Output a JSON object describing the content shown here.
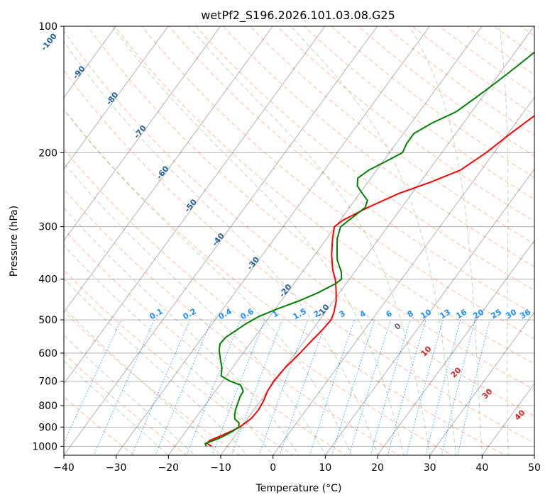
{
  "chart_data": {
    "type": "line",
    "subtype": "skew-t log-p",
    "title": "wetPf2_S196.2026.101.03.08.G25",
    "xlabel": "Temperature (°C)",
    "ylabel": "Pressure (hPa)",
    "xlim": [
      -40,
      50
    ],
    "ylim": [
      1050,
      100
    ],
    "y_scale": "log",
    "x_ticks": [
      -40,
      -30,
      -20,
      -10,
      0,
      10,
      20,
      30,
      40,
      50
    ],
    "x_tick_labels": [
      "−40",
      "−30",
      "−20",
      "−10",
      "0",
      "10",
      "20",
      "30",
      "40",
      "50"
    ],
    "y_ticks": [
      1000,
      900,
      800,
      700,
      600,
      500,
      400,
      300,
      200,
      100
    ],
    "y_tick_labels": [
      "1000",
      "900",
      "800",
      "700",
      "600",
      "500",
      "400",
      "300",
      "200",
      "100"
    ],
    "grid": true,
    "series": [
      {
        "color": "#ff0000",
        "points": [
          {
            "p": 1000,
            "t": -13.0
          },
          {
            "p": 985,
            "t": -14.2
          },
          {
            "p": 970,
            "t": -14.2
          },
          {
            "p": 950,
            "t": -13.0
          },
          {
            "p": 920,
            "t": -11.3
          },
          {
            "p": 900,
            "t": -10.3
          },
          {
            "p": 860,
            "t": -9.3
          },
          {
            "p": 820,
            "t": -9.1
          },
          {
            "p": 780,
            "t": -9.4
          },
          {
            "p": 740,
            "t": -10.0
          },
          {
            "p": 700,
            "t": -10.2
          },
          {
            "p": 650,
            "t": -9.9
          },
          {
            "p": 600,
            "t": -9.1
          },
          {
            "p": 560,
            "t": -8.6
          },
          {
            "p": 530,
            "t": -8.1
          },
          {
            "p": 500,
            "t": -7.8
          },
          {
            "p": 480,
            "t": -8.3
          },
          {
            "p": 450,
            "t": -9.5
          },
          {
            "p": 420,
            "t": -11.3
          },
          {
            "p": 400,
            "t": -12.7
          },
          {
            "p": 380,
            "t": -14.5
          },
          {
            "p": 350,
            "t": -16.8
          },
          {
            "p": 320,
            "t": -18.9
          },
          {
            "p": 300,
            "t": -20.2
          },
          {
            "p": 290,
            "t": -19.5
          },
          {
            "p": 280,
            "t": -18.0
          },
          {
            "p": 270,
            "t": -16.5
          },
          {
            "p": 260,
            "t": -14.5
          },
          {
            "p": 250,
            "t": -12.5
          },
          {
            "p": 235,
            "t": -8.0
          },
          {
            "p": 220,
            "t": -4.0
          },
          {
            "p": 200,
            "t": -1.5
          },
          {
            "p": 180,
            "t": 0.5
          },
          {
            "p": 160,
            "t": 3.0
          },
          {
            "p": 150,
            "t": 5.5
          },
          {
            "p": 140,
            "t": 8.0
          },
          {
            "p": 130,
            "t": 9.5
          },
          {
            "p": 120,
            "t": 11.0
          },
          {
            "p": 110,
            "t": 11.5
          },
          {
            "p": 100,
            "t": 12.0
          }
        ]
      },
      {
        "color": "#008000",
        "points": [
          {
            "p": 1000,
            "t": -14.0
          },
          {
            "p": 985,
            "t": -14.6
          },
          {
            "p": 970,
            "t": -13.5
          },
          {
            "p": 950,
            "t": -12.3
          },
          {
            "p": 920,
            "t": -11.0
          },
          {
            "p": 900,
            "t": -10.5
          },
          {
            "p": 880,
            "t": -11.0
          },
          {
            "p": 860,
            "t": -12.4
          },
          {
            "p": 840,
            "t": -13.0
          },
          {
            "p": 820,
            "t": -13.5
          },
          {
            "p": 790,
            "t": -14.0
          },
          {
            "p": 760,
            "t": -14.5
          },
          {
            "p": 740,
            "t": -14.6
          },
          {
            "p": 715,
            "t": -16.0
          },
          {
            "p": 700,
            "t": -18.5
          },
          {
            "p": 680,
            "t": -21.0
          },
          {
            "p": 650,
            "t": -22.0
          },
          {
            "p": 620,
            "t": -23.5
          },
          {
            "p": 590,
            "t": -25.0
          },
          {
            "p": 570,
            "t": -25.7
          },
          {
            "p": 550,
            "t": -25.5
          },
          {
            "p": 530,
            "t": -24.5
          },
          {
            "p": 510,
            "t": -23.5
          },
          {
            "p": 490,
            "t": -22.0
          },
          {
            "p": 470,
            "t": -19.5
          },
          {
            "p": 450,
            "t": -16.5
          },
          {
            "p": 430,
            "t": -14.0
          },
          {
            "p": 410,
            "t": -12.0
          },
          {
            "p": 400,
            "t": -11.5
          },
          {
            "p": 385,
            "t": -12.5
          },
          {
            "p": 360,
            "t": -15.0
          },
          {
            "p": 340,
            "t": -16.5
          },
          {
            "p": 320,
            "t": -18.0
          },
          {
            "p": 300,
            "t": -19.0
          },
          {
            "p": 285,
            "t": -18.0
          },
          {
            "p": 270,
            "t": -17.0
          },
          {
            "p": 260,
            "t": -17.5
          },
          {
            "p": 250,
            "t": -19.5
          },
          {
            "p": 240,
            "t": -21.5
          },
          {
            "p": 230,
            "t": -22.5
          },
          {
            "p": 220,
            "t": -21.5
          },
          {
            "p": 210,
            "t": -19.5
          },
          {
            "p": 200,
            "t": -17.5
          },
          {
            "p": 190,
            "t": -18.0
          },
          {
            "p": 180,
            "t": -18.0
          },
          {
            "p": 175,
            "t": -17.0
          },
          {
            "p": 170,
            "t": -16.0
          },
          {
            "p": 160,
            "t": -13.0
          },
          {
            "p": 150,
            "t": -11.5
          },
          {
            "p": 140,
            "t": -10.0
          },
          {
            "p": 130,
            "t": -8.5
          },
          {
            "p": 120,
            "t": -7.0
          },
          {
            "p": 110,
            "t": -5.5
          },
          {
            "p": 100,
            "t": -4.0
          }
        ]
      }
    ],
    "dry_adiabat_labels": [
      "-100",
      "-90",
      "-80",
      "-70",
      "-60",
      "-50",
      "-40",
      "-30",
      "-20",
      "-10"
    ],
    "mixing_ratio_labels": [
      "0.1",
      "0.2",
      "0.4",
      "0.6",
      "1",
      "1.5",
      "2",
      "3",
      "4",
      "6",
      "8",
      "10",
      "13",
      "16",
      "20",
      "25",
      "30",
      "36"
    ],
    "moist_adiabat_labels": [
      "0",
      "10",
      "20",
      "30",
      "40"
    ],
    "colors": {
      "temperature": "#ff0000",
      "dewpoint": "#008000",
      "dry_adiabat": "#ff6a33",
      "moist_adiabat": "#33a02c",
      "mixing_ratio": "#1e90ff",
      "isotherm": "#000000",
      "dry_adiabat_label": "#1f5f9f",
      "mixing_ratio_label": "#1e90ff",
      "moist_adiabat_label": "#d62728"
    }
  }
}
